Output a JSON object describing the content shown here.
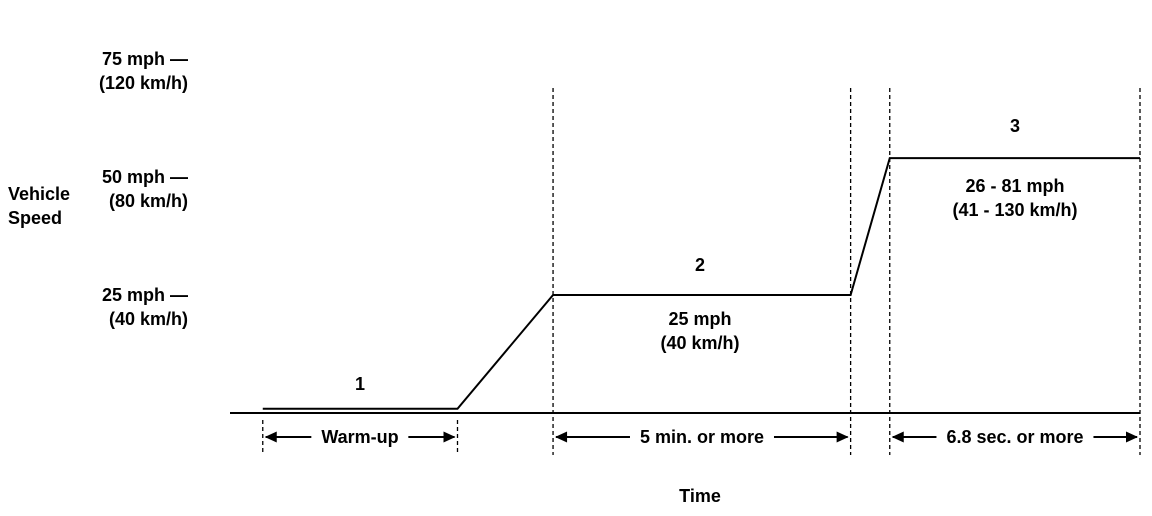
{
  "figure": {
    "background": "#ffffff",
    "line_color": "#000000"
  },
  "chart_data": {
    "type": "line",
    "xlabel": "Time",
    "ylabel": "Vehicle\nSpeed",
    "ylim": [
      0,
      90
    ],
    "grid": false,
    "y_ticks": [
      {
        "value": 75,
        "label": "75 mph —",
        "label_metric": "(120 km/h)"
      },
      {
        "value": 50,
        "label": "50 mph —",
        "label_metric": "(80 km/h)"
      },
      {
        "value": 25,
        "label": "25 mph —",
        "label_metric": "(40 km/h)"
      }
    ],
    "series": [
      {
        "name": "vehicle speed profile",
        "x": [
          0.036,
          0.25,
          0.355,
          0.682,
          0.725,
          1.0
        ],
        "y": [
          0.9,
          0.9,
          25,
          25,
          54,
          54
        ]
      }
    ],
    "phase_boundaries_x": [
      0.355,
      0.682,
      0.725,
      1.0
    ],
    "phases": [
      {
        "number": "1",
        "annotation": "",
        "duration_label": "Warm-up",
        "span_x": [
          0.036,
          0.25
        ]
      },
      {
        "number": "2",
        "annotation": "25 mph\n(40 km/h)",
        "duration_label": "5 min. or more",
        "span_x": [
          0.355,
          0.682
        ]
      },
      {
        "number": "3",
        "annotation": "26 - 81 mph\n(41 - 130 km/h)",
        "duration_label": "6.8 sec. or more",
        "span_x": [
          0.725,
          1.0
        ]
      }
    ]
  }
}
